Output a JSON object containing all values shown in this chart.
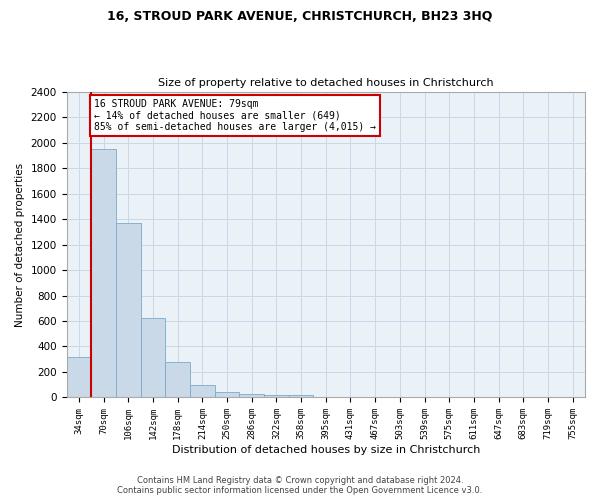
{
  "title": "16, STROUD PARK AVENUE, CHRISTCHURCH, BH23 3HQ",
  "subtitle": "Size of property relative to detached houses in Christchurch",
  "xlabel": "Distribution of detached houses by size in Christchurch",
  "ylabel": "Number of detached properties",
  "categories": [
    "34sqm",
    "70sqm",
    "106sqm",
    "142sqm",
    "178sqm",
    "214sqm",
    "250sqm",
    "286sqm",
    "322sqm",
    "358sqm",
    "395sqm",
    "431sqm",
    "467sqm",
    "503sqm",
    "539sqm",
    "575sqm",
    "611sqm",
    "647sqm",
    "683sqm",
    "719sqm",
    "755sqm"
  ],
  "bar_heights": [
    315,
    1950,
    1370,
    625,
    275,
    100,
    45,
    30,
    22,
    18,
    0,
    0,
    0,
    0,
    0,
    0,
    0,
    0,
    0,
    0,
    0
  ],
  "bar_color": "#c9d9e8",
  "bar_edge_color": "#7aaac8",
  "annotation_text": "16 STROUD PARK AVENUE: 79sqm\n← 14% of detached houses are smaller (649)\n85% of semi-detached houses are larger (4,015) →",
  "annotation_box_color": "#cc0000",
  "ylim": [
    0,
    2400
  ],
  "yticks": [
    0,
    200,
    400,
    600,
    800,
    1000,
    1200,
    1400,
    1600,
    1800,
    2000,
    2200,
    2400
  ],
  "vline_x_index": 1,
  "vline_color": "#cc0000",
  "background_color": "#ffffff",
  "ax_facecolor": "#eaf2f8",
  "grid_color": "#c8d8e8",
  "footnote1": "Contains HM Land Registry data © Crown copyright and database right 2024.",
  "footnote2": "Contains public sector information licensed under the Open Government Licence v3.0."
}
